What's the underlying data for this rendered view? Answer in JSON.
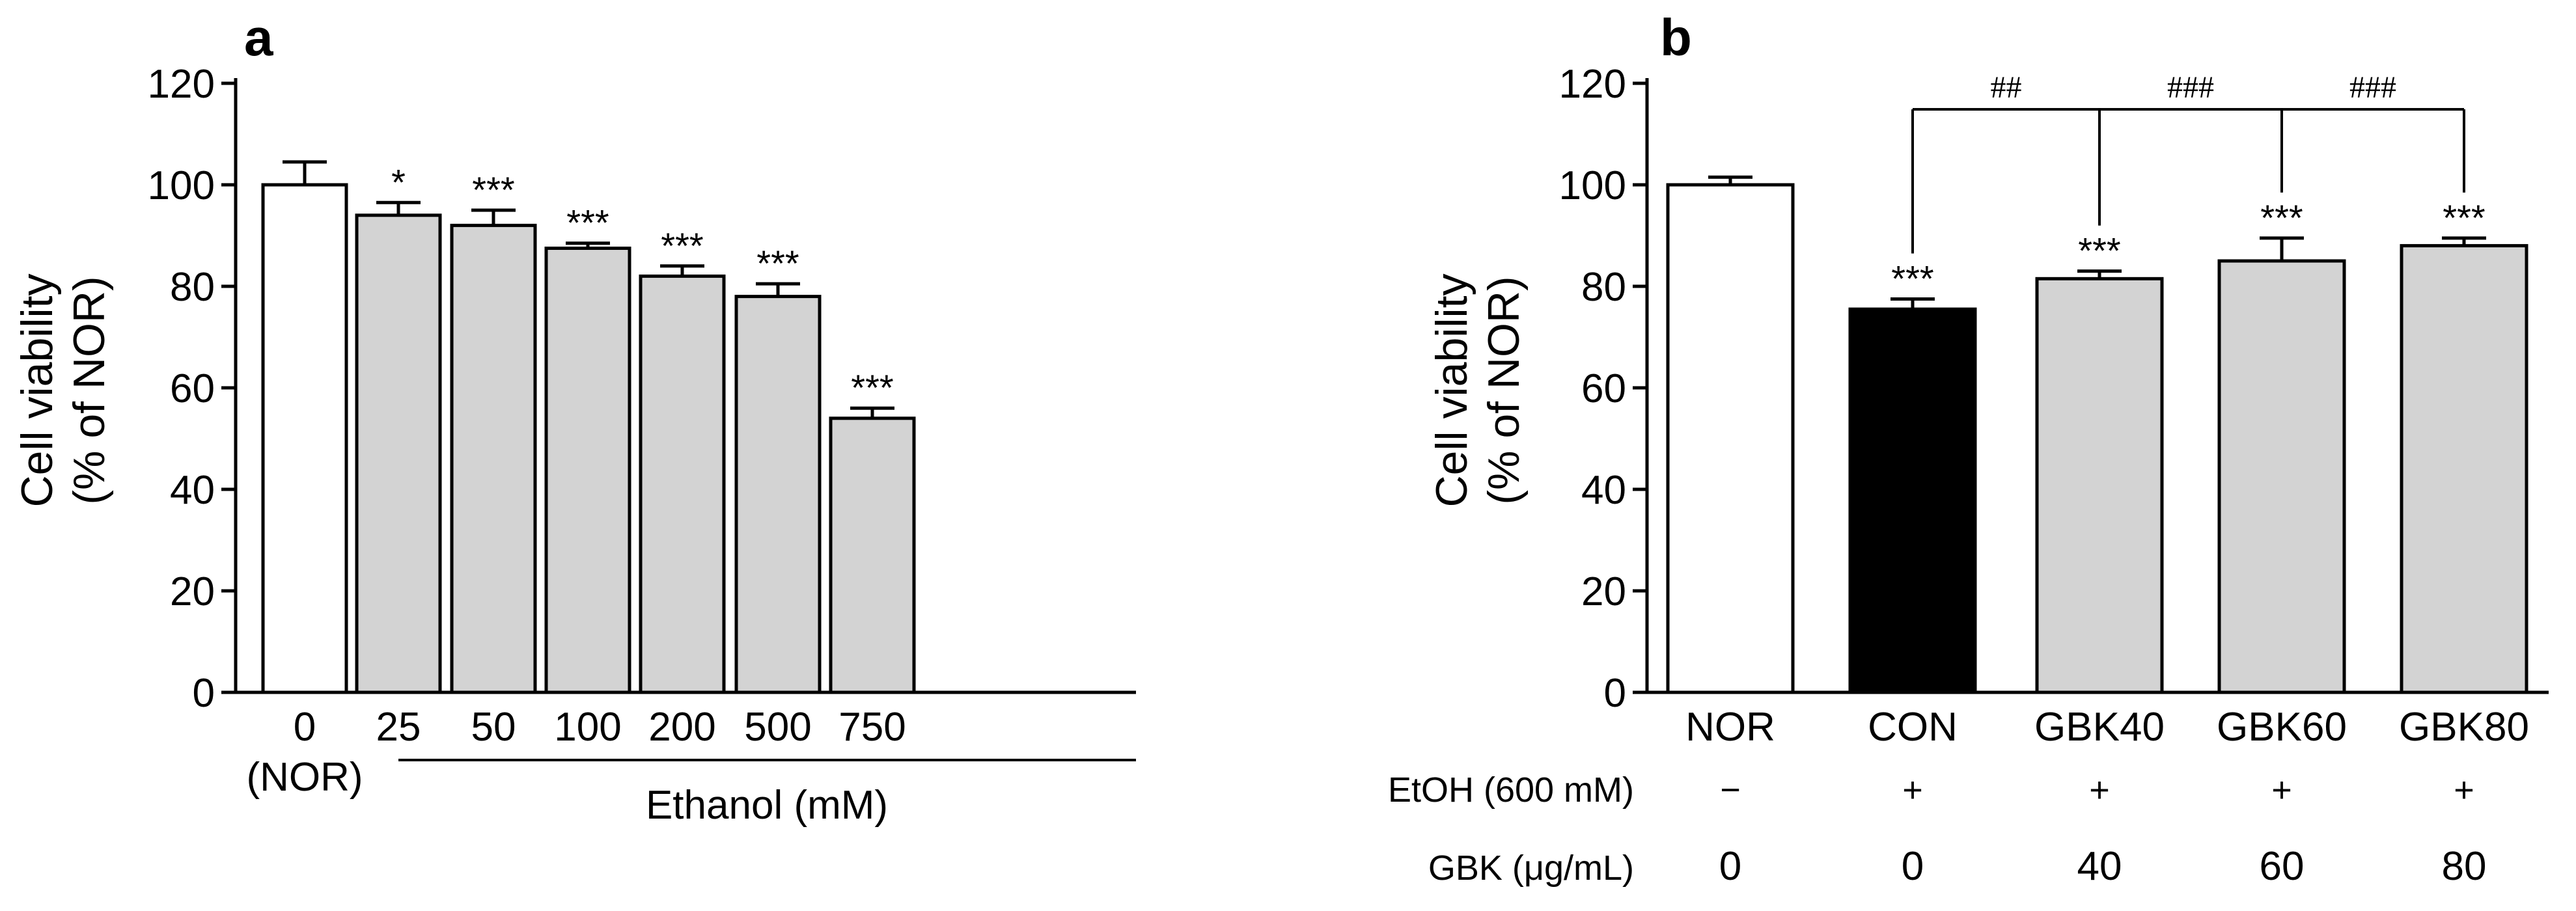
{
  "colors": {
    "normal": "#ffffff",
    "control": "#000000",
    "treatment": "#d3d3d3",
    "ink": "#000000"
  },
  "chart_data": [
    {
      "type": "bar",
      "panel": "a",
      "ylabel_line1": "Cell viability",
      "ylabel_line2": "(% of  NOR)",
      "ylim": [
        0,
        120
      ],
      "yticks": [
        0,
        20,
        40,
        60,
        80,
        100,
        120
      ],
      "categories": [
        "0",
        "25",
        "50",
        "100",
        "200",
        "500",
        "750"
      ],
      "values": [
        100,
        94,
        92,
        87.5,
        82,
        78,
        54
      ],
      "errors": [
        4.5,
        2.5,
        3,
        1,
        2,
        2.5,
        2
      ],
      "fills": [
        "normal",
        "treatment",
        "treatment",
        "treatment",
        "treatment",
        "treatment",
        "treatment"
      ],
      "significance": [
        "",
        "*",
        "***",
        "***",
        "***",
        "***",
        "***"
      ],
      "sublabel_first": "(NOR)",
      "group_label": "Ethanol (mM)"
    },
    {
      "type": "bar",
      "panel": "b",
      "ylabel_line1": "Cell viability",
      "ylabel_line2": "(% of  NOR)",
      "ylim": [
        0,
        120
      ],
      "yticks": [
        0,
        20,
        40,
        60,
        80,
        100,
        120
      ],
      "categories": [
        "NOR",
        "CON",
        "GBK40",
        "GBK60",
        "GBK80"
      ],
      "values": [
        100,
        75.5,
        81.5,
        85,
        88
      ],
      "errors": [
        1.5,
        2,
        1.5,
        4.5,
        1.5
      ],
      "fills": [
        "normal",
        "control",
        "treatment",
        "treatment",
        "treatment"
      ],
      "significance": [
        "",
        "***",
        "***",
        "***",
        "***"
      ],
      "brackets": [
        "##",
        "###",
        "###"
      ],
      "condition_rows": [
        {
          "label": "EtOH  (600 mM)",
          "values": [
            "−",
            "+",
            "+",
            "+",
            "+"
          ]
        },
        {
          "label": "GBK (μg/mL)",
          "values": [
            "0",
            "0",
            "40",
            "60",
            "80"
          ]
        }
      ]
    }
  ]
}
